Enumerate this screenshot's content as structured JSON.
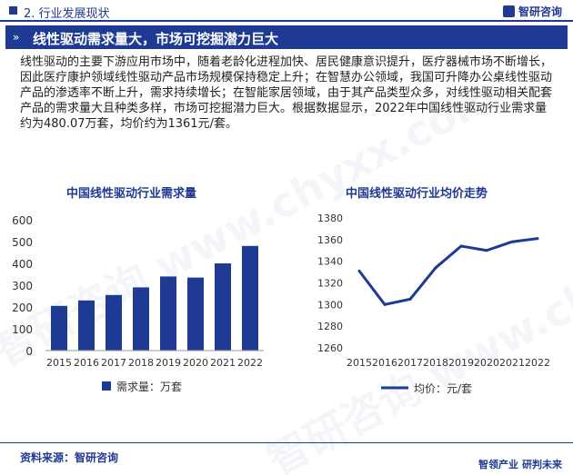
{
  "header": {
    "section_title": "2. 行业发展现状",
    "brand": "智研咨询"
  },
  "banner": {
    "title": "线性驱动需求量大，市场可挖掘潜力巨大"
  },
  "paragraph": "线性驱动的主要下游应用市场中，随着老龄化进程加快、居民健康意识提升，医疗器械市场不断增长，因此医疗康护领域线性驱动产品市场规模保持稳定上升；在智慧办公领域，我国可升降办公桌线性驱动产品的渗透率不断上升，需求持续增长；在智能家居领域，由于其产品类型众多，对线性驱动相关配套产品的需求量大且种类多样，市场可挖掘潜力巨大。根据数据显示，2022年中国线性驱动行业需求量约为480.07万套，均价约为1361元/套。",
  "colors": {
    "primary": "#1f3a93"
  },
  "chart_data": [
    {
      "type": "bar",
      "title": "中国线性驱动行业需求量",
      "categories": [
        "2015",
        "2016",
        "2017",
        "2018",
        "2019",
        "2020",
        "2021",
        "2022"
      ],
      "series": [
        {
          "name": "需求量：万套",
          "values": [
            205,
            230,
            255,
            290,
            340,
            335,
            400,
            480.07
          ]
        }
      ],
      "ylim": [
        0,
        600
      ],
      "yticks": [
        0,
        100,
        200,
        300,
        400,
        500,
        600
      ],
      "legend": "bottom",
      "grid": false
    },
    {
      "type": "line",
      "title": "中国线性驱动行业均价走势",
      "categories": [
        "2015",
        "2016",
        "2017",
        "2018",
        "2019",
        "2020",
        "2021",
        "2022"
      ],
      "series": [
        {
          "name": "均价：元/套",
          "values": [
            1331,
            1300,
            1305,
            1334,
            1354,
            1350,
            1358,
            1361
          ]
        }
      ],
      "ylim": [
        1260,
        1380
      ],
      "yticks": [
        1260,
        1280,
        1300,
        1320,
        1340,
        1360,
        1380
      ],
      "legend": "bottom",
      "grid": false
    }
  ],
  "footer": {
    "source": "资料来源：智研咨询",
    "brand_left": "智领产业",
    "brand_right": "研判未来"
  },
  "watermark": "智研咨询 www.chyxx.com"
}
